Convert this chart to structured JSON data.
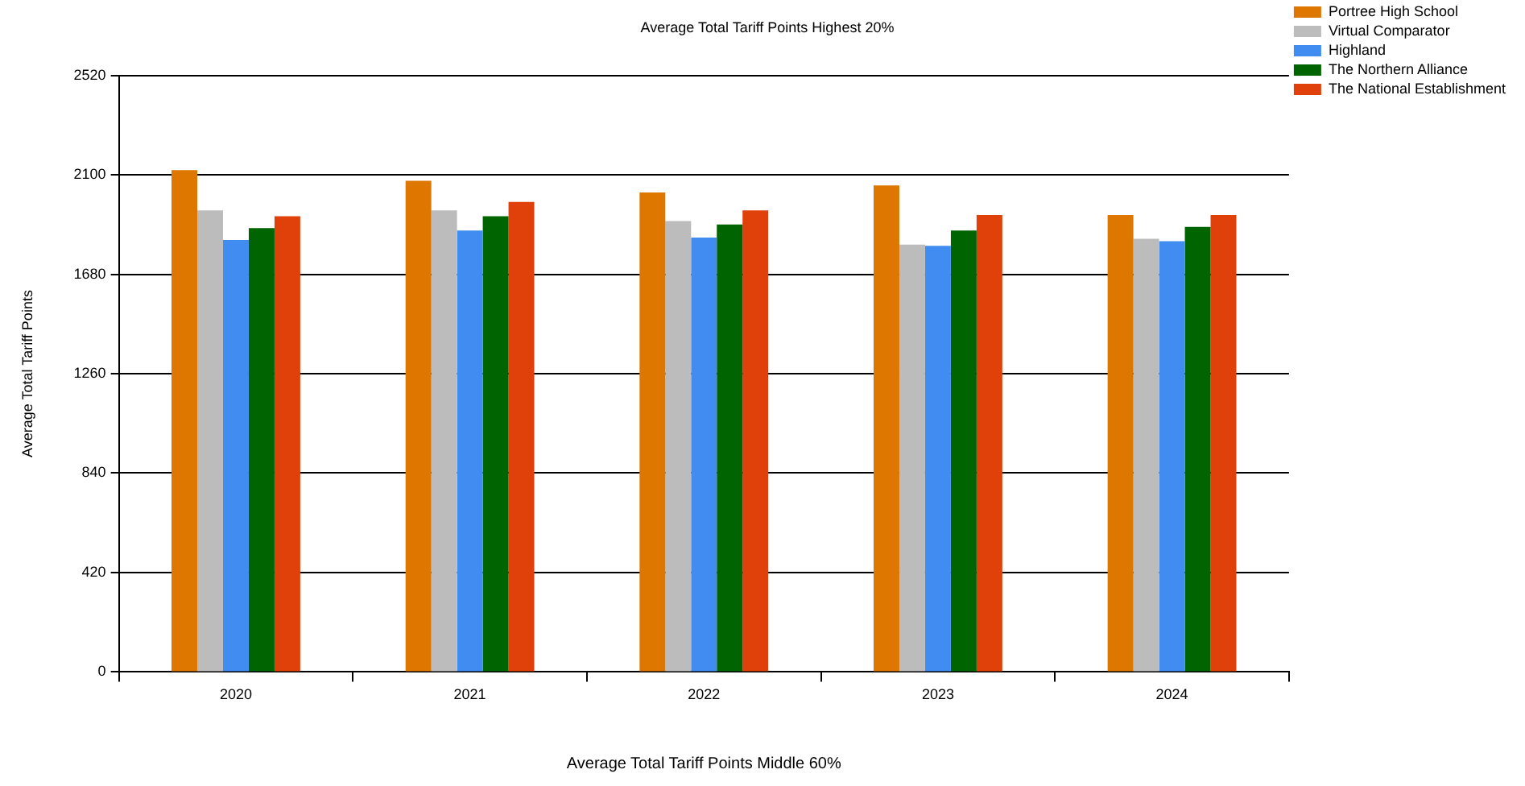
{
  "chart_data": {
    "type": "bar",
    "title": "Average Total Tariff Points Highest 20%",
    "xlabel": "Average Total Tariff Points Middle 60%",
    "ylabel": "Average Total Tariff Points",
    "categories": [
      "2020",
      "2021",
      "2022",
      "2023",
      "2024"
    ],
    "series": [
      {
        "name": "Portree High School",
        "color": "#de7700",
        "values": [
          2120,
          2075,
          2025,
          2055,
          1930
        ]
      },
      {
        "name": "Virtual Comparator",
        "color": "#bcbcbc",
        "values": [
          1950,
          1950,
          1905,
          1805,
          1830
        ]
      },
      {
        "name": "Highland",
        "color": "#418cf0",
        "values": [
          1825,
          1865,
          1835,
          1800,
          1820
        ]
      },
      {
        "name": "The Northern Alliance",
        "color": "#006400",
        "values": [
          1875,
          1925,
          1890,
          1865,
          1880
        ]
      },
      {
        "name": "The National Establishment",
        "color": "#e0400a",
        "values": [
          1925,
          1985,
          1950,
          1930,
          1930
        ]
      }
    ],
    "ylim": [
      0,
      2520
    ],
    "yticks": [
      0,
      420,
      840,
      1260,
      1680,
      2100,
      2520
    ],
    "grid": "y",
    "legend": "top right"
  }
}
